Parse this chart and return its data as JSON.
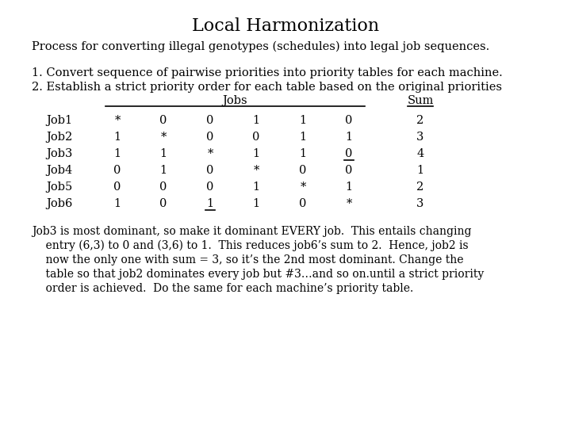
{
  "title": "Local Harmonization",
  "subtitle": "Process for converting illegal genotypes (schedules) into legal job sequences.",
  "steps": [
    "1. Convert sequence of pairwise priorities into priority tables for each machine.",
    "2. Establish a strict priority order for each table based on the original priorities"
  ],
  "table_header_jobs": "Jobs",
  "table_header_sum": "Sum",
  "row_labels": [
    "Job1",
    "Job2",
    "Job3",
    "Job4",
    "Job5",
    "Job6"
  ],
  "table_data": [
    [
      "*",
      "0",
      "0",
      "1",
      "1",
      "0",
      "2"
    ],
    [
      "1",
      "*",
      "0",
      "0",
      "1",
      "1",
      "3"
    ],
    [
      "1",
      "1",
      "*",
      "1",
      "1",
      "0",
      "4"
    ],
    [
      "0",
      "1",
      "0",
      "*",
      "0",
      "0",
      "1"
    ],
    [
      "0",
      "0",
      "0",
      "1",
      "*",
      "1",
      "2"
    ],
    [
      "1",
      "0",
      "1",
      "1",
      "0",
      "*",
      "3"
    ]
  ],
  "underline_cells": [
    [
      2,
      5
    ],
    [
      5,
      2
    ]
  ],
  "footer_lines": [
    "Job3 is most dominant, so make it dominant EVERY job.  This entails changing",
    "    entry (6,3) to 0 and (3,6) to 1.  This reduces job6’s sum to 2.  Hence, job2 is",
    "    now the only one with sum = 3, so it’s the 2nd most dominant. Change the",
    "    table so that job2 dominates every job but #3…and so on.until a strict priority",
    "    order is achieved.  Do the same for each machine’s priority table."
  ],
  "bg_color": "white",
  "text_color": "black",
  "title_fontsize": 16,
  "body_fontsize": 10.5,
  "table_fontsize": 10.5,
  "footer_fontsize": 10.0
}
